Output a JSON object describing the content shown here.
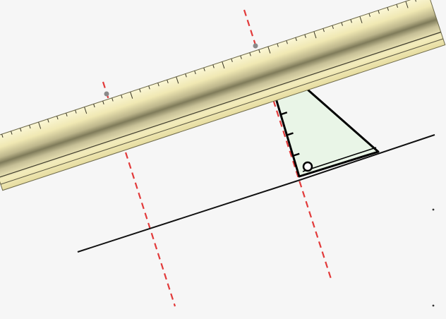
{
  "canvas": {
    "background": "#f6f6f6"
  },
  "colors": {
    "guide_line": "#e23a3a",
    "solid_line": "#111111",
    "ruler_light": "#fbf6cf",
    "ruler_mid": "#e9dfa3",
    "ruler_dark": "#8f8a64",
    "set_square_fill": "#e8f5e6",
    "set_square_stroke": "#000000",
    "pivot_dot": "#8a8a8a",
    "stray_dot": "#333333"
  },
  "ruler": {
    "tick_count": 46,
    "icon": "ruler-icon"
  },
  "set_square": {
    "icon": "set-square-icon",
    "right_angle_marker": "circle-handle-icon",
    "scale_marks": 3
  },
  "guides": {
    "count": 2,
    "style": "dashed"
  }
}
